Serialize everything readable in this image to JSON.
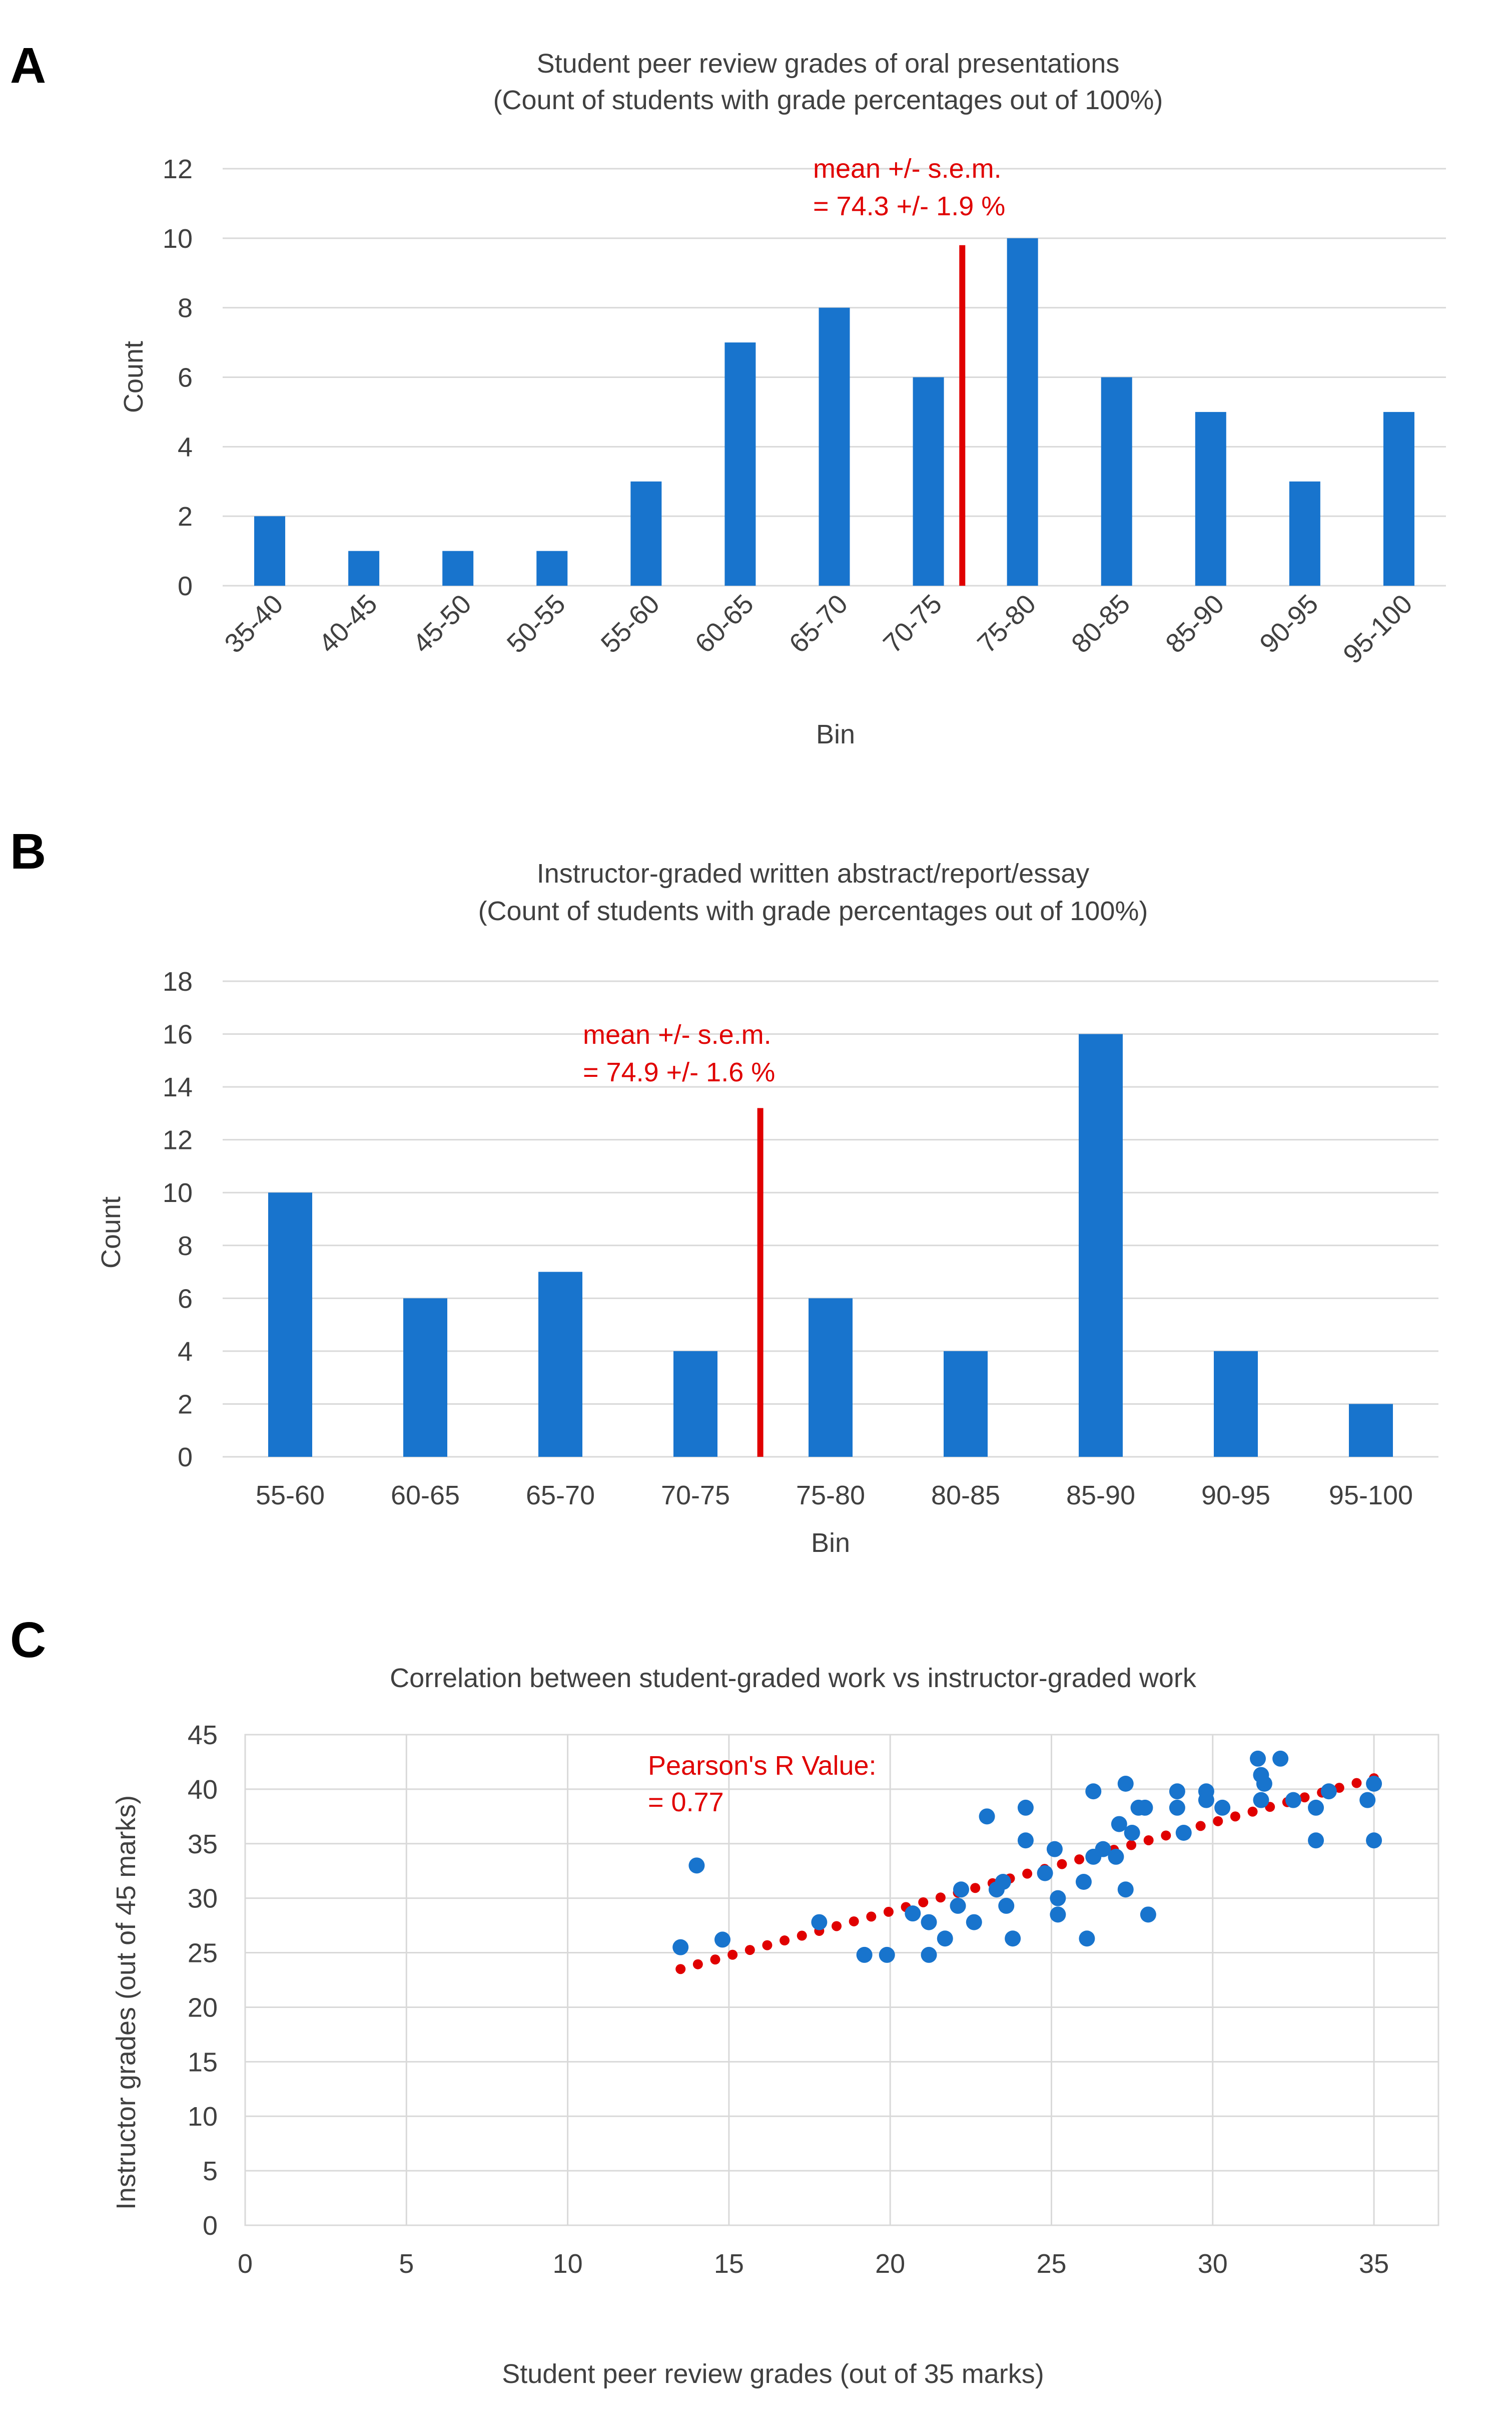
{
  "colors": {
    "bar": "#1874cd",
    "point": "#1874cd",
    "annotation": "#e00000",
    "trend": "#e00000",
    "text": "#404040",
    "grid": "#d9d9d9"
  },
  "chart_data": [
    {
      "panel": "A",
      "type": "bar",
      "title": "Student peer review grades of oral presentations",
      "subtitle": "(Count of students with grade percentages out of 100%)",
      "xlabel": "Bin",
      "ylabel": "Count",
      "categories": [
        "35-40",
        "40-45",
        "45-50",
        "50-55",
        "55-60",
        "60-65",
        "65-70",
        "70-75",
        "75-80",
        "80-85",
        "85-90",
        "90-95",
        "95-100"
      ],
      "values": [
        2,
        1,
        1,
        1,
        3,
        7,
        8,
        6,
        10,
        6,
        5,
        3,
        5
      ],
      "ylim": [
        0,
        12
      ],
      "yticks": [
        0,
        2,
        4,
        6,
        8,
        10,
        12
      ],
      "mean_line": {
        "x": 74.3,
        "height": 9.8
      },
      "annotation": [
        "mean +/- s.e.m.",
        "= 74.3 +/- 1.9 %"
      ]
    },
    {
      "panel": "B",
      "type": "bar",
      "title": "Instructor-graded written abstract/report/essay",
      "subtitle": "(Count of students with grade percentages out of 100%)",
      "xlabel": "Bin",
      "ylabel": "Count",
      "categories": [
        "55-60",
        "60-65",
        "65-70",
        "70-75",
        "75-80",
        "80-85",
        "85-90",
        "90-95",
        "95-100"
      ],
      "values": [
        10,
        6,
        7,
        4,
        6,
        4,
        16,
        4,
        2
      ],
      "ylim": [
        0,
        18
      ],
      "yticks": [
        0,
        2,
        4,
        6,
        8,
        10,
        12,
        14,
        16,
        18
      ],
      "mean_line": {
        "x": 74.9,
        "height": 13.2
      },
      "annotation": [
        "mean +/- s.e.m.",
        "= 74.9 +/- 1.6 %"
      ]
    },
    {
      "panel": "C",
      "type": "scatter",
      "title": "Correlation between student-graded work vs instructor-graded work",
      "xlabel": "Student peer review grades (out of 35 marks)",
      "ylabel": "Instructor grades (out of 45 marks)",
      "xlim": [
        0,
        37
      ],
      "ylim": [
        0,
        45
      ],
      "xticks": [
        0,
        5,
        10,
        15,
        20,
        25,
        30,
        35
      ],
      "yticks": [
        0,
        5,
        10,
        15,
        20,
        25,
        30,
        35,
        40,
        45
      ],
      "annotation": [
        "Pearson's R Value:",
        " = 0.77"
      ],
      "trendline": {
        "x": [
          13.5,
          35
        ],
        "y": [
          23.5,
          41
        ]
      },
      "points": [
        [
          13.5,
          25.5
        ],
        [
          14,
          33
        ],
        [
          14.8,
          26.2
        ],
        [
          17.8,
          27.8
        ],
        [
          19.2,
          24.8
        ],
        [
          19.9,
          24.8
        ],
        [
          20.7,
          28.6
        ],
        [
          21.2,
          24.8
        ],
        [
          21.2,
          27.8
        ],
        [
          21.7,
          26.3
        ],
        [
          22.1,
          29.3
        ],
        [
          22.2,
          30.8
        ],
        [
          22.6,
          27.8
        ],
        [
          23,
          37.5
        ],
        [
          23.3,
          30.8
        ],
        [
          23.5,
          31.5
        ],
        [
          23.6,
          29.3
        ],
        [
          23.8,
          26.3
        ],
        [
          24.2,
          38.3
        ],
        [
          24.2,
          35.3
        ],
        [
          24.8,
          32.3
        ],
        [
          25.1,
          34.5
        ],
        [
          25.2,
          30
        ],
        [
          25.2,
          28.5
        ],
        [
          26,
          31.5
        ],
        [
          26.1,
          26.3
        ],
        [
          26.3,
          39.8
        ],
        [
          26.3,
          33.8
        ],
        [
          26.6,
          34.5
        ],
        [
          27,
          33.8
        ],
        [
          27.1,
          36.8
        ],
        [
          27.3,
          40.5
        ],
        [
          27.3,
          30.8
        ],
        [
          27.5,
          36
        ],
        [
          27.7,
          38.3
        ],
        [
          27.9,
          38.3
        ],
        [
          28,
          28.5
        ],
        [
          28.9,
          39.8
        ],
        [
          28.9,
          38.3
        ],
        [
          29.1,
          36
        ],
        [
          29.8,
          39.8
        ],
        [
          29.8,
          39
        ],
        [
          30.3,
          38.3
        ],
        [
          31.4,
          42.8
        ],
        [
          31.5,
          41.3
        ],
        [
          31.5,
          39
        ],
        [
          31.6,
          40.5
        ],
        [
          32.1,
          42.8
        ],
        [
          32.5,
          39
        ],
        [
          33.2,
          38.3
        ],
        [
          33.2,
          35.3
        ],
        [
          33.6,
          39.8
        ],
        [
          34.8,
          39
        ],
        [
          35,
          40.5
        ],
        [
          35,
          35.3
        ]
      ]
    }
  ]
}
